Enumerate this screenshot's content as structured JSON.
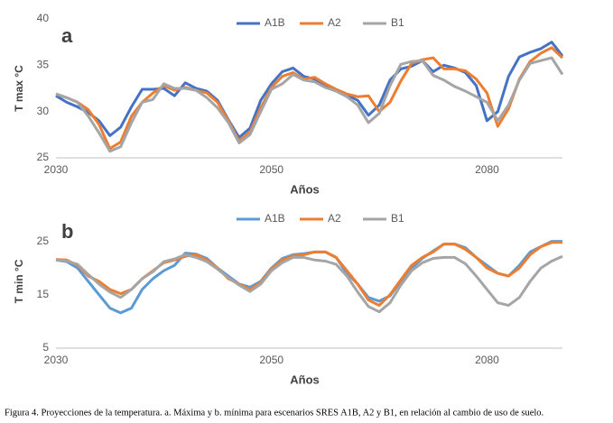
{
  "chart_data": [
    {
      "type": "line",
      "panel_label": "a",
      "ylabel": "T max °C",
      "xlabel": "Años",
      "legend": "top",
      "categories": [
        "2030",
        null,
        null,
        null,
        null,
        null,
        null,
        null,
        null,
        null,
        null,
        null,
        null,
        null,
        null,
        null,
        null,
        null,
        null,
        null,
        "2050",
        null,
        null,
        null,
        null,
        null,
        null,
        null,
        null,
        null,
        null,
        null,
        null,
        null,
        null,
        null,
        null,
        null,
        null,
        null,
        "2080",
        null,
        null,
        null,
        null,
        null,
        null,
        null
      ],
      "ylim": [
        25,
        40
      ],
      "yticks": [
        25,
        30,
        35,
        40
      ],
      "series": [
        {
          "name": "A1B",
          "color": "#4472c4",
          "values": [
            31.7,
            31.0,
            30.5,
            29.9,
            29.0,
            27.4,
            28.3,
            30.5,
            32.4,
            32.4,
            32.5,
            31.7,
            33.1,
            32.5,
            32.2,
            31.2,
            29.1,
            27.2,
            28.2,
            31.2,
            33.0,
            34.3,
            34.7,
            33.8,
            33.5,
            32.8,
            32.3,
            31.8,
            31.2,
            29.6,
            30.7,
            33.4,
            34.6,
            34.9,
            35.5,
            34.3,
            35.0,
            34.7,
            34.2,
            32.8,
            29.0,
            30.0,
            33.8,
            35.9,
            36.4,
            36.8,
            37.5,
            36.0
          ]
        },
        {
          "name": "A2",
          "color": "#ed7d31",
          "values": [
            31.9,
            31.5,
            31.0,
            30.2,
            28.6,
            26.0,
            26.7,
            29.5,
            31.0,
            32.0,
            32.8,
            32.3,
            32.6,
            32.3,
            32.0,
            31.0,
            29.0,
            26.8,
            27.8,
            30.4,
            32.6,
            33.8,
            34.2,
            33.5,
            33.7,
            33.0,
            32.4,
            31.9,
            31.6,
            31.7,
            30.0,
            31.0,
            33.3,
            35.2,
            35.6,
            35.8,
            34.6,
            34.6,
            34.4,
            33.5,
            32.0,
            28.4,
            30.3,
            33.5,
            35.4,
            36.3,
            36.9,
            35.8
          ]
        },
        {
          "name": "B1",
          "color": "#a5a5a5",
          "values": [
            31.9,
            31.5,
            31.0,
            29.5,
            27.7,
            25.7,
            26.2,
            28.8,
            31.0,
            31.3,
            33.0,
            32.5,
            32.5,
            32.3,
            31.5,
            30.4,
            28.8,
            26.6,
            27.5,
            30.0,
            32.4,
            33.0,
            34.0,
            33.4,
            33.2,
            32.6,
            32.2,
            31.6,
            30.7,
            28.8,
            29.8,
            32.8,
            35.1,
            35.4,
            35.5,
            33.9,
            33.4,
            32.7,
            32.2,
            31.6,
            31.0,
            29.0,
            30.7,
            33.4,
            35.2,
            35.5,
            35.8,
            34.0
          ]
        }
      ]
    },
    {
      "type": "line",
      "panel_label": "b",
      "ylabel": "T min °C",
      "xlabel": "Años",
      "legend": "top",
      "categories": [
        "2030",
        null,
        null,
        null,
        null,
        null,
        null,
        null,
        null,
        null,
        null,
        null,
        null,
        null,
        null,
        null,
        null,
        null,
        null,
        null,
        "2050",
        null,
        null,
        null,
        null,
        null,
        null,
        null,
        null,
        null,
        null,
        null,
        null,
        null,
        null,
        null,
        null,
        null,
        null,
        null,
        "2080",
        null,
        null,
        null,
        null,
        null,
        null,
        null
      ],
      "ylim": [
        5,
        30
      ],
      "yticks": [
        5,
        15,
        25
      ],
      "series": [
        {
          "name": "A1B",
          "color": "#5b9bd5",
          "values": [
            21.5,
            21.2,
            20.0,
            17.5,
            15.0,
            12.5,
            11.6,
            12.5,
            16.0,
            18.0,
            19.5,
            20.5,
            22.8,
            22.6,
            21.8,
            20.0,
            18.5,
            17.0,
            16.4,
            17.5,
            20.0,
            21.8,
            22.5,
            22.7,
            23.0,
            23.0,
            22.0,
            19.0,
            17.0,
            14.5,
            13.8,
            14.8,
            17.5,
            20.0,
            21.8,
            23.2,
            24.5,
            24.5,
            23.8,
            22.0,
            20.5,
            19.0,
            18.5,
            20.5,
            23.0,
            24.0,
            25.0,
            25.0
          ]
        },
        {
          "name": "A2",
          "color": "#ed7d31",
          "values": [
            21.6,
            21.5,
            20.5,
            18.5,
            17.5,
            16.0,
            15.2,
            16.0,
            18.0,
            19.5,
            21.0,
            21.5,
            22.2,
            22.5,
            21.5,
            20.0,
            18.0,
            17.0,
            16.0,
            17.3,
            19.8,
            21.5,
            22.3,
            22.5,
            23.0,
            23.0,
            22.0,
            19.5,
            17.0,
            14.0,
            13.0,
            15.0,
            17.8,
            20.5,
            22.0,
            23.0,
            24.5,
            24.5,
            23.5,
            22.0,
            20.0,
            19.0,
            18.5,
            20.0,
            22.5,
            24.0,
            24.8,
            24.8
          ]
        },
        {
          "name": "B1",
          "color": "#a5a5a5",
          "values": [
            21.5,
            21.3,
            20.7,
            18.8,
            17.0,
            15.5,
            14.5,
            16.0,
            18.0,
            19.3,
            21.2,
            21.7,
            22.5,
            22.0,
            21.2,
            19.8,
            18.2,
            16.8,
            15.6,
            17.0,
            19.5,
            21.0,
            22.0,
            22.0,
            21.5,
            21.3,
            20.7,
            18.5,
            15.5,
            12.8,
            11.8,
            13.5,
            16.8,
            19.5,
            21.0,
            21.8,
            22.0,
            22.0,
            20.8,
            18.5,
            16.0,
            13.5,
            13.0,
            14.5,
            17.5,
            20.0,
            21.3,
            22.2
          ]
        }
      ]
    }
  ],
  "caption": "Figura 4. Proyecciones de la temperatura. a. Máxima y b. mínima para escenarios SRES A1B, A2 y B1, en relación al cambio de uso de suelo."
}
